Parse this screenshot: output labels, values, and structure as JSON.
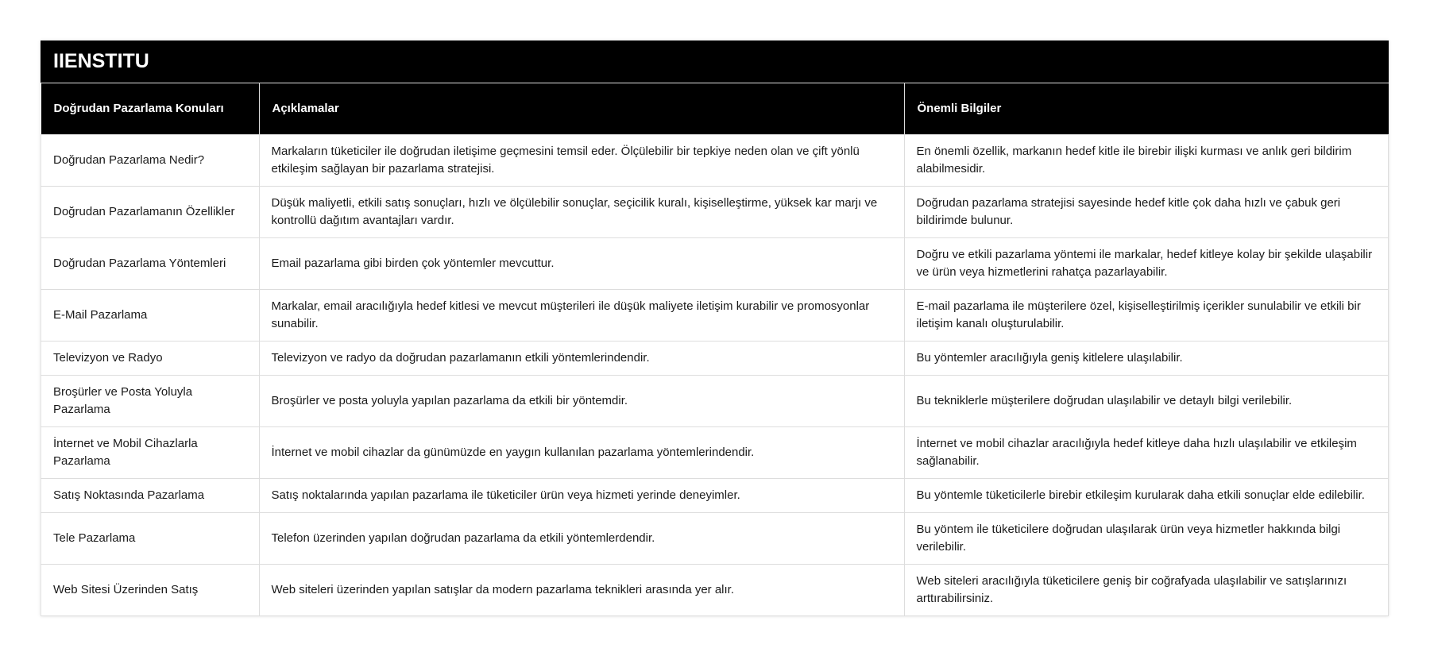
{
  "title": "IIENSTITU",
  "headers": [
    "Doğrudan Pazarlama Konuları",
    "Açıklamalar",
    "Önemli Bilgiler"
  ],
  "rows": [
    [
      "Doğrudan Pazarlama Nedir?",
      "Markaların tüketiciler ile doğrudan iletişime geçmesini temsil eder. Ölçülebilir bir tepkiye neden olan ve çift yönlü etkileşim sağlayan bir pazarlama stratejisi.",
      "En önemli özellik, markanın hedef kitle ile birebir ilişki kurması ve anlık geri bildirim alabilmesidir."
    ],
    [
      "Doğrudan Pazarlamanın Özellikler",
      "Düşük maliyetli, etkili satış sonuçları, hızlı ve ölçülebilir sonuçlar, seçicilik kuralı, kişiselleştirme, yüksek kar marjı ve kontrollü dağıtım avantajları vardır.",
      "Doğrudan pazarlama stratejisi sayesinde hedef kitle çok daha hızlı ve çabuk geri bildirimde bulunur."
    ],
    [
      "Doğrudan Pazarlama Yöntemleri",
      "Email pazarlama gibi birden çok yöntemler mevcuttur.",
      "Doğru ve etkili pazarlama yöntemi ile markalar, hedef kitleye kolay bir şekilde ulaşabilir ve ürün veya hizmetlerini rahatça pazarlayabilir."
    ],
    [
      "E-Mail Pazarlama",
      "Markalar, email aracılığıyla hedef kitlesi ve mevcut müşterileri ile düşük maliyete iletişim kurabilir ve promosyonlar sunabilir.",
      "E-mail pazarlama ile müşterilere özel, kişiselleştirilmiş içerikler sunulabilir ve etkili bir iletişim kanalı oluşturulabilir."
    ],
    [
      "Televizyon ve Radyo",
      "Televizyon ve radyo da doğrudan pazarlamanın etkili yöntemlerindendir.",
      "Bu yöntemler aracılığıyla geniş kitlelere ulaşılabilir."
    ],
    [
      "Broşürler ve Posta Yoluyla Pazarlama",
      "Broşürler ve posta yoluyla yapılan pazarlama da etkili bir yöntemdir.",
      "Bu tekniklerle müşterilere doğrudan ulaşılabilir ve detaylı bilgi verilebilir."
    ],
    [
      "İnternet ve Mobil Cihazlarla Pazarlama",
      "İnternet ve mobil cihazlar da günümüzde en yaygın kullanılan pazarlama yöntemlerindendir.",
      "İnternet ve mobil cihazlar aracılığıyla hedef kitleye daha hızlı ulaşılabilir ve etkileşim sağlanabilir."
    ],
    [
      "Satış Noktasında Pazarlama",
      "Satış noktalarında yapılan pazarlama ile tüketiciler ürün veya hizmeti yerinde deneyimler.",
      "Bu yöntemle tüketicilerle birebir etkileşim kurularak daha etkili sonuçlar elde edilebilir."
    ],
    [
      "Tele Pazarlama",
      "Telefon üzerinden yapılan doğrudan pazarlama da etkili yöntemlerdendir.",
      "Bu yöntem ile tüketicilere doğrudan ulaşılarak ürün veya hizmetler hakkında bilgi verilebilir."
    ],
    [
      "Web Sitesi Üzerinden Satış",
      "Web siteleri üzerinden yapılan satışlar da modern pazarlama teknikleri arasında yer alır.",
      "Web siteleri aracılığıyla tüketicilere geniş bir coğrafyada ulaşılabilir ve satışlarınızı arttırabilirsiniz."
    ]
  ]
}
